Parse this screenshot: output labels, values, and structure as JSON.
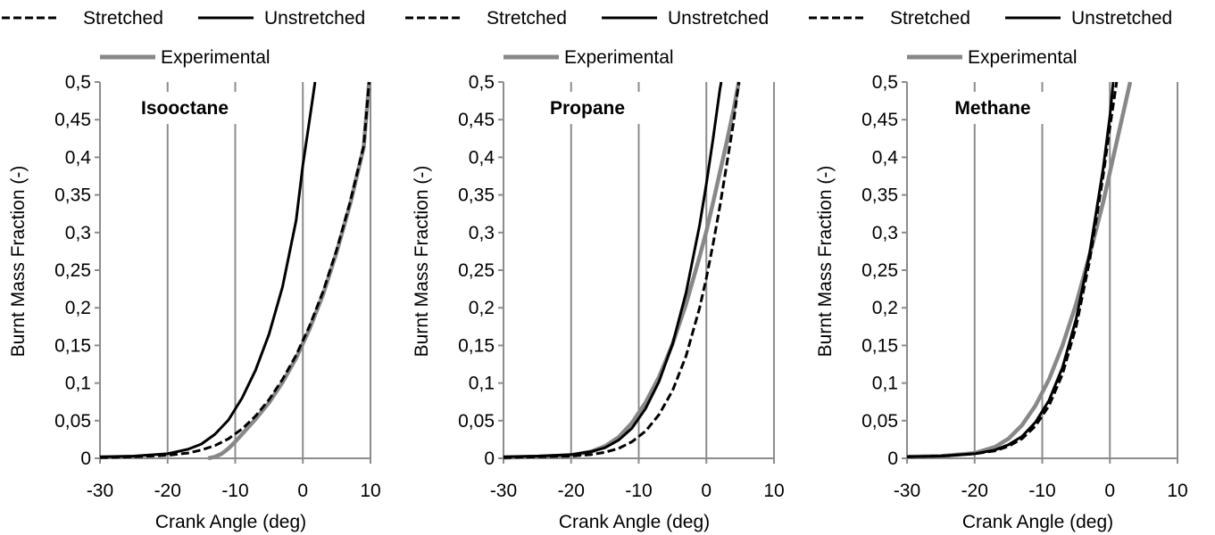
{
  "chart_data": [
    {
      "type": "line",
      "title": "Isooctane",
      "xlabel": "Crank Angle (deg)",
      "ylabel": "Burnt Mass Fraction (-)",
      "xlim": [
        -30,
        10
      ],
      "ylim": [
        0,
        0.5
      ],
      "xticks": [
        "-30",
        "-20",
        "-10",
        "0",
        "10"
      ],
      "yticks": [
        "0",
        "0,05",
        "0,1",
        "0,15",
        "0,2",
        "0,25",
        "0,3",
        "0,35",
        "0,4",
        "0,45",
        "0,5"
      ],
      "grid": "vertical",
      "legend": "top",
      "series": [
        {
          "name": "Stretched",
          "style": "dashed",
          "color": "#000000",
          "x": [
            -30,
            -25,
            -20,
            -17,
            -15,
            -13,
            -11,
            -9,
            -7,
            -5,
            -3,
            -1,
            1,
            3,
            5,
            7,
            9,
            9.8
          ],
          "y": [
            0.001,
            0.002,
            0.004,
            0.007,
            0.011,
            0.017,
            0.026,
            0.039,
            0.056,
            0.078,
            0.105,
            0.137,
            0.176,
            0.222,
            0.277,
            0.341,
            0.415,
            0.5
          ]
        },
        {
          "name": "Unstretched",
          "style": "solid",
          "color": "#000000",
          "x": [
            -30,
            -25,
            -20,
            -17,
            -15,
            -13,
            -11,
            -9,
            -7,
            -5,
            -3,
            -1,
            0,
            1,
            1.8
          ],
          "y": [
            0.002,
            0.003,
            0.006,
            0.012,
            0.019,
            0.032,
            0.051,
            0.08,
            0.117,
            0.165,
            0.228,
            0.316,
            0.39,
            0.45,
            0.5
          ]
        },
        {
          "name": "Experimental",
          "style": "solid",
          "color": "#888888",
          "x": [
            -14,
            -13,
            -12,
            -11,
            -10,
            -9,
            -7,
            -5,
            -3,
            -1,
            1,
            3,
            5,
            7,
            9,
            9.8
          ],
          "y": [
            0,
            0.002,
            0.006,
            0.013,
            0.022,
            0.032,
            0.052,
            0.074,
            0.101,
            0.133,
            0.172,
            0.218,
            0.274,
            0.338,
            0.413,
            0.5
          ]
        }
      ]
    },
    {
      "type": "line",
      "title": "Propane",
      "xlabel": "Crank Angle (deg)",
      "ylabel": "Burnt Mass Fraction (-)",
      "xlim": [
        -30,
        10
      ],
      "ylim": [
        0,
        0.5
      ],
      "xticks": [
        "-30",
        "-20",
        "-10",
        "0",
        "10"
      ],
      "yticks": [
        "0",
        "0,05",
        "0,1",
        "0,15",
        "0,2",
        "0,25",
        "0,3",
        "0,35",
        "0,4",
        "0,45",
        "0,5"
      ],
      "grid": "vertical",
      "legend": "top",
      "series": [
        {
          "name": "Stretched",
          "style": "dashed",
          "color": "#000000",
          "x": [
            -30,
            -25,
            -20,
            -17,
            -15,
            -13,
            -11,
            -9,
            -7,
            -5,
            -3,
            -1,
            0,
            1,
            2,
            3,
            4,
            4.8
          ],
          "y": [
            0.001,
            0.002,
            0.003,
            0.005,
            0.008,
            0.013,
            0.022,
            0.036,
            0.058,
            0.09,
            0.136,
            0.2,
            0.24,
            0.285,
            0.335,
            0.39,
            0.445,
            0.5
          ]
        },
        {
          "name": "Unstretched",
          "style": "solid",
          "color": "#000000",
          "x": [
            -30,
            -25,
            -20,
            -17,
            -15,
            -13,
            -11,
            -9,
            -7,
            -5,
            -3,
            -1,
            0,
            1,
            2,
            2.2
          ],
          "y": [
            0.002,
            0.003,
            0.005,
            0.009,
            0.014,
            0.024,
            0.04,
            0.066,
            0.102,
            0.152,
            0.22,
            0.31,
            0.365,
            0.425,
            0.49,
            0.5
          ]
        },
        {
          "name": "Experimental",
          "style": "solid",
          "color": "#888888",
          "x": [
            -30,
            -25,
            -20,
            -17,
            -15,
            -13,
            -11,
            -9,
            -7,
            -5,
            -3,
            -1,
            0,
            1,
            2,
            3,
            4,
            4.8
          ],
          "y": [
            0.001,
            0.002,
            0.004,
            0.009,
            0.016,
            0.028,
            0.047,
            0.074,
            0.108,
            0.152,
            0.205,
            0.268,
            0.302,
            0.34,
            0.38,
            0.42,
            0.462,
            0.5
          ]
        }
      ]
    },
    {
      "type": "line",
      "title": "Methane",
      "xlabel": "Crank Angle (deg)",
      "ylabel": "Burnt Mass Fraction (-)",
      "xlim": [
        -30,
        10
      ],
      "ylim": [
        0,
        0.5
      ],
      "xticks": [
        "-30",
        "-20",
        "-10",
        "0",
        "10"
      ],
      "yticks": [
        "0",
        "0,05",
        "0,1",
        "0,15",
        "0,2",
        "0,25",
        "0,3",
        "0,35",
        "0,4",
        "0,45",
        "0,5"
      ],
      "grid": "vertical",
      "legend": "top",
      "series": [
        {
          "name": "Stretched",
          "style": "dashed",
          "color": "#000000",
          "x": [
            -30,
            -25,
            -20,
            -17,
            -15,
            -13,
            -11,
            -9,
            -7,
            -5,
            -3,
            -1,
            0,
            1
          ],
          "y": [
            0.002,
            0.003,
            0.006,
            0.01,
            0.016,
            0.026,
            0.043,
            0.07,
            0.112,
            0.175,
            0.262,
            0.375,
            0.44,
            0.5
          ]
        },
        {
          "name": "Unstretched",
          "style": "solid",
          "color": "#000000",
          "x": [
            -30,
            -25,
            -20,
            -17,
            -15,
            -13,
            -11,
            -9,
            -7,
            -5,
            -3,
            -1,
            0,
            0.5
          ],
          "y": [
            0.002,
            0.003,
            0.006,
            0.011,
            0.018,
            0.029,
            0.048,
            0.077,
            0.121,
            0.185,
            0.272,
            0.385,
            0.455,
            0.5
          ]
        },
        {
          "name": "Experimental",
          "style": "solid",
          "color": "#888888",
          "x": [
            -30,
            -25,
            -20,
            -17,
            -15,
            -13,
            -11,
            -9,
            -7,
            -5,
            -3,
            -1,
            1,
            3
          ],
          "y": [
            0.002,
            0.003,
            0.007,
            0.015,
            0.026,
            0.044,
            0.07,
            0.105,
            0.15,
            0.205,
            0.27,
            0.34,
            0.42,
            0.5
          ]
        }
      ]
    }
  ]
}
